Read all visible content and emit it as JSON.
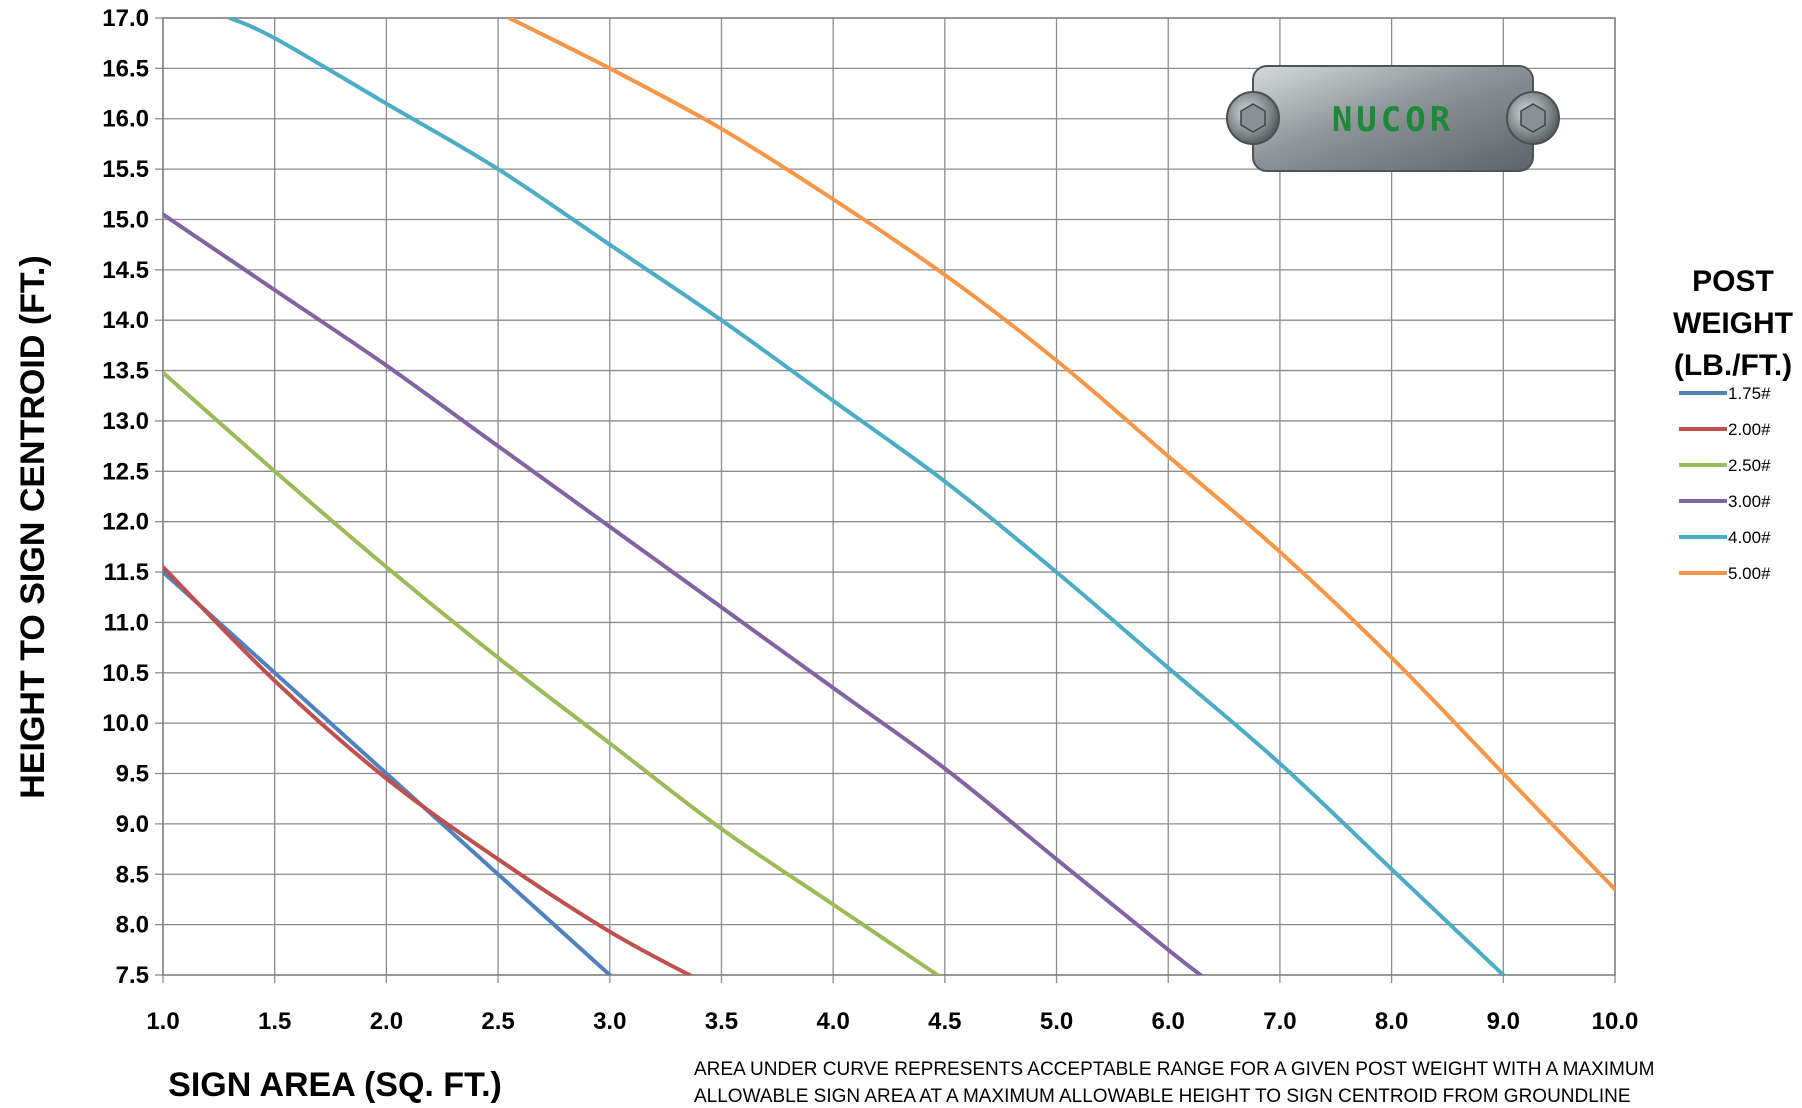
{
  "chart_data": {
    "type": "line",
    "xlabel": "SIGN AREA (SQ. FT.)",
    "ylabel": "HEIGHT TO SIGN CENTROID (FT.)",
    "x_ticks": [
      "1.0",
      "1.5",
      "2.0",
      "2.5",
      "3.0",
      "3.5",
      "4.0",
      "4.5",
      "5.0",
      "6.0",
      "7.0",
      "8.0",
      "9.0",
      "10.0"
    ],
    "y_ticks": [
      "7.5",
      "8.0",
      "8.5",
      "9.0",
      "9.5",
      "10.0",
      "10.5",
      "11.0",
      "11.5",
      "12.0",
      "12.5",
      "13.0",
      "13.5",
      "14.0",
      "14.5",
      "15.0",
      "15.5",
      "16.0",
      "16.5",
      "17.0"
    ],
    "ylim": [
      7.5,
      17.0
    ],
    "grid": true,
    "legend": {
      "title_lines": [
        "POST",
        "WEIGHT",
        "(LB./FT.)"
      ],
      "placement": "right"
    },
    "series": [
      {
        "name": "1.75#",
        "color": "#4f81bd",
        "x": [
          1.0,
          1.5,
          2.0,
          2.5,
          3.0
        ],
        "y": [
          11.5,
          10.5,
          9.5,
          8.5,
          7.5
        ]
      },
      {
        "name": "2.00#",
        "color": "#c0504d",
        "x": [
          1.0,
          1.5,
          2.0,
          2.5,
          3.0,
          3.4
        ],
        "y": [
          11.55,
          10.42,
          9.45,
          8.65,
          7.93,
          7.45
        ]
      },
      {
        "name": "2.50#",
        "color": "#9bbb59",
        "x": [
          1.0,
          1.5,
          2.0,
          2.5,
          3.0,
          3.5,
          4.0,
          4.5
        ],
        "y": [
          13.48,
          12.5,
          11.55,
          10.65,
          9.8,
          8.95,
          8.2,
          7.45
        ]
      },
      {
        "name": "3.00#",
        "color": "#8064a2",
        "x": [
          1.0,
          1.5,
          2.0,
          2.5,
          3.0,
          3.5,
          4.0,
          4.5,
          5.0,
          6.0,
          6.35
        ],
        "y": [
          15.05,
          14.3,
          13.55,
          12.75,
          11.95,
          11.15,
          10.35,
          9.55,
          8.65,
          7.75,
          7.45
        ]
      },
      {
        "name": "4.00#",
        "color": "#4bacc6",
        "x": [
          1.3,
          1.5,
          2.0,
          2.5,
          3.0,
          3.5,
          4.0,
          4.5,
          5.0,
          6.0,
          7.0,
          8.0,
          9.0
        ],
        "y": [
          17.0,
          16.8,
          16.15,
          15.5,
          14.75,
          14.0,
          13.2,
          12.4,
          11.5,
          10.55,
          9.6,
          8.55,
          7.5
        ]
      },
      {
        "name": "5.00#",
        "color": "#f79646",
        "x": [
          2.55,
          3.0,
          3.5,
          4.0,
          4.5,
          5.0,
          6.0,
          7.0,
          8.0,
          9.0,
          10.0
        ],
        "y": [
          17.0,
          16.5,
          15.9,
          15.2,
          14.45,
          13.6,
          12.65,
          11.7,
          10.65,
          9.5,
          8.35
        ]
      }
    ]
  },
  "logo": {
    "text": "NUCOR"
  },
  "note_lines": [
    "AREA UNDER CURVE REPRESENTS ACCEPTABLE RANGE FOR  A GIVEN POST WEIGHT  WITH  A MAXIMUM",
    "ALLOWABLE SIGN AREA AT A MAXIMUM ALLOWABLE HEIGHT TO SIGN  CENTROID FROM GROUNDLINE"
  ]
}
